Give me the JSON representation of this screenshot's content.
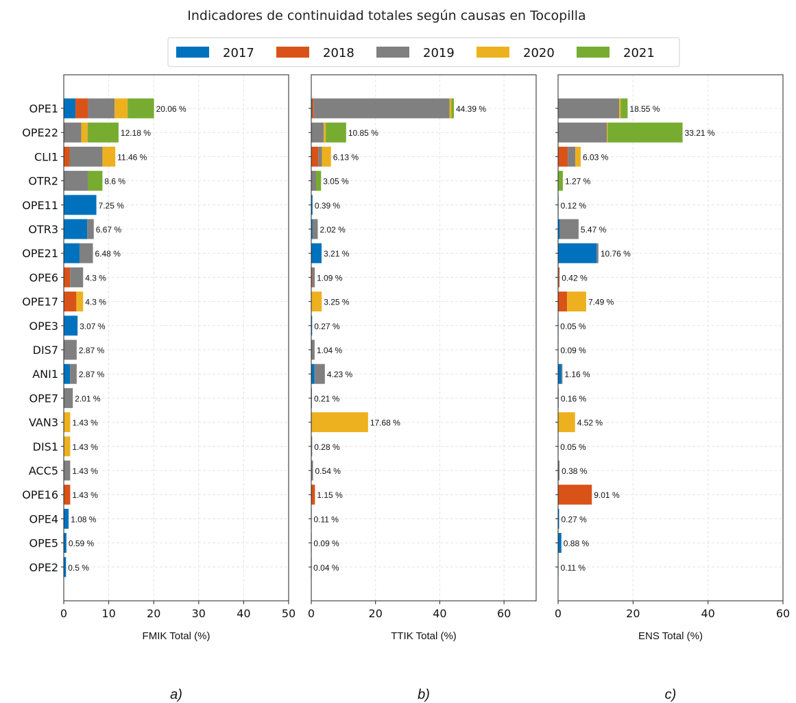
{
  "figure": {
    "title": "Indicadores de continuidad totales según causas en Tocopilla"
  },
  "legend": [
    {
      "name": "2017",
      "color": "#0072BD"
    },
    {
      "name": "2018",
      "color": "#D95319"
    },
    {
      "name": "2019",
      "color": "#808080"
    },
    {
      "name": "2020",
      "color": "#EDB120"
    },
    {
      "name": "2021",
      "color": "#77AC30"
    }
  ],
  "chart_data": [
    {
      "type": "bar",
      "orientation": "horizontal",
      "stacked": true,
      "panel_label": "a)",
      "xlabel": "FMIK Total (%)",
      "xlim": [
        0,
        50
      ],
      "xticks": [
        0,
        10,
        20,
        30,
        40,
        50
      ],
      "grid": true,
      "categories": [
        "OPE1",
        "OPE22",
        "CLI1",
        "OTR2",
        "OPE11",
        "OTR3",
        "OPE21",
        "OPE6",
        "OPE17",
        "OPE3",
        "DIS7",
        "ANI1",
        "OPE7",
        "VAN3",
        "DIS1",
        "ACC5",
        "OPE16",
        "OPE4",
        "OPE5",
        "OPE2"
      ],
      "series": [
        {
          "name": "2017",
          "values": [
            2.6,
            0,
            0,
            0,
            7.25,
            5.2,
            3.5,
            0,
            0,
            3.07,
            0,
            1.4,
            0,
            0,
            0,
            0,
            0,
            1.08,
            0.59,
            0.5
          ]
        },
        {
          "name": "2018",
          "values": [
            2.8,
            0,
            1.3,
            0,
            0,
            0,
            0,
            1.4,
            2.8,
            0,
            0,
            0,
            0,
            0,
            0,
            0,
            1.43,
            0,
            0,
            0
          ]
        },
        {
          "name": "2019",
          "values": [
            5.9,
            3.9,
            7.3,
            5.4,
            0,
            1.47,
            2.98,
            2.9,
            0,
            0,
            2.87,
            1.47,
            2.01,
            0,
            0,
            1.43,
            0,
            0,
            0,
            0
          ]
        },
        {
          "name": "2020",
          "values": [
            2.9,
            1.4,
            2.86,
            0,
            0,
            0,
            0,
            0,
            1.5,
            0,
            0,
            0,
            0,
            1.43,
            1.43,
            0,
            0,
            0,
            0,
            0
          ]
        },
        {
          "name": "2021",
          "values": [
            5.86,
            6.88,
            0,
            3.2,
            0,
            0,
            0,
            0,
            0,
            0,
            0,
            0,
            0,
            0,
            0,
            0,
            0,
            0,
            0,
            0
          ]
        }
      ],
      "totals_labels": [
        "20.06 %",
        "12.18 %",
        "11.46 %",
        "8.6 %",
        "7.25 %",
        "6.67 %",
        "6.48 %",
        "4.3 %",
        "4.3 %",
        "3.07 %",
        "2.87 %",
        "2.87 %",
        "2.01 %",
        "1.43 %",
        "1.43 %",
        "1.43 %",
        "1.43 %",
        "1.08 %",
        "0.59 %",
        "0.5 %"
      ]
    },
    {
      "type": "bar",
      "orientation": "horizontal",
      "stacked": true,
      "panel_label": "b)",
      "xlabel": "TTIK Total (%)",
      "xlim": [
        0,
        70
      ],
      "xticks": [
        0,
        20,
        40,
        60
      ],
      "grid": true,
      "categories": [
        "OPE1",
        "OPE22",
        "CLI1",
        "OTR2",
        "OPE11",
        "OTR3",
        "OPE21",
        "OPE6",
        "OPE17",
        "OPE3",
        "DIS7",
        "ANI1",
        "OPE7",
        "VAN3",
        "DIS1",
        "ACC5",
        "OPE16",
        "OPE4",
        "OPE5",
        "OPE2"
      ],
      "series": [
        {
          "name": "2017",
          "values": [
            0.2,
            0,
            0,
            0,
            0.39,
            0.4,
            3.21,
            0,
            0,
            0.27,
            0,
            1.0,
            0,
            0,
            0,
            0,
            0,
            0.11,
            0.09,
            0.04
          ]
        },
        {
          "name": "2018",
          "values": [
            0.5,
            0,
            2.2,
            0,
            0,
            0,
            0,
            0.3,
            0.1,
            0,
            0,
            0,
            0,
            0,
            0,
            0,
            1.15,
            0,
            0,
            0
          ]
        },
        {
          "name": "2019",
          "values": [
            42.3,
            3.9,
            1.1,
            1.5,
            0,
            1.62,
            0,
            0.79,
            0,
            0,
            1.04,
            3.23,
            0.21,
            0,
            0.28,
            0.54,
            0,
            0,
            0,
            0
          ]
        },
        {
          "name": "2020",
          "values": [
            0.6,
            0.6,
            2.83,
            0,
            0,
            0,
            0,
            0,
            3.15,
            0,
            0,
            0,
            0,
            17.68,
            0,
            0,
            0,
            0,
            0,
            0
          ]
        },
        {
          "name": "2021",
          "values": [
            0.79,
            6.35,
            0,
            1.55,
            0,
            0,
            0,
            0,
            0,
            0,
            0,
            0,
            0,
            0,
            0,
            0,
            0,
            0,
            0,
            0
          ]
        }
      ],
      "totals_labels": [
        "44.39 %",
        "10.85 %",
        "6.13 %",
        "3.05 %",
        "0.39 %",
        "2.02 %",
        "3.21 %",
        "1.09 %",
        "3.25 %",
        "0.27 %",
        "1.04 %",
        "4.23 %",
        "0.21 %",
        "17.68 %",
        "0.28 %",
        "0.54 %",
        "1.15 %",
        "0.11 %",
        "0.09 %",
        "0.04 %"
      ]
    },
    {
      "type": "bar",
      "orientation": "horizontal",
      "stacked": true,
      "panel_label": "c)",
      "xlabel": "ENS Total (%)",
      "xlim": [
        0,
        60
      ],
      "xticks": [
        0,
        20,
        40,
        60
      ],
      "grid": true,
      "categories": [
        "OPE1",
        "OPE22",
        "CLI1",
        "OTR2",
        "OPE11",
        "OTR3",
        "OPE21",
        "OPE6",
        "OPE17",
        "OPE3",
        "DIS7",
        "ANI1",
        "OPE7",
        "VAN3",
        "DIS1",
        "ACC5",
        "OPE16",
        "OPE4",
        "OPE5",
        "OPE2"
      ],
      "series": [
        {
          "name": "2017",
          "values": [
            0,
            0,
            0,
            0,
            0.12,
            0.5,
            10.3,
            0,
            0,
            0.05,
            0,
            0.9,
            0,
            0,
            0,
            0,
            0,
            0.27,
            0.88,
            0.11
          ]
        },
        {
          "name": "2018",
          "values": [
            0,
            0,
            2.6,
            0,
            0,
            0,
            0,
            0.3,
            2.4,
            0,
            0,
            0,
            0,
            0,
            0,
            0,
            9.01,
            0,
            0,
            0
          ]
        },
        {
          "name": "2019",
          "values": [
            16.3,
            13.0,
            2.0,
            0,
            0,
            4.97,
            0.46,
            0.12,
            0,
            0,
            0.09,
            0.26,
            0.16,
            0,
            0.05,
            0.38,
            0,
            0,
            0,
            0
          ]
        },
        {
          "name": "2020",
          "values": [
            0.4,
            0.2,
            1.43,
            0,
            0,
            0,
            0,
            0,
            5.09,
            0,
            0,
            0,
            0,
            4.52,
            0,
            0,
            0,
            0,
            0,
            0
          ]
        },
        {
          "name": "2021",
          "values": [
            1.85,
            20.01,
            0,
            1.27,
            0,
            0,
            0,
            0,
            0,
            0,
            0,
            0,
            0,
            0,
            0,
            0,
            0,
            0,
            0,
            0
          ]
        }
      ],
      "totals_labels": [
        "18.55 %",
        "33.21 %",
        "6.03 %",
        "1.27 %",
        "0.12 %",
        "5.47 %",
        "10.76 %",
        "0.42 %",
        "7.49 %",
        "0.05 %",
        "0.09 %",
        "1.16 %",
        "0.16 %",
        "4.52 %",
        "0.05 %",
        "0.38 %",
        "9.01 %",
        "0.27 %",
        "0.88 %",
        "0.11 %"
      ]
    }
  ]
}
